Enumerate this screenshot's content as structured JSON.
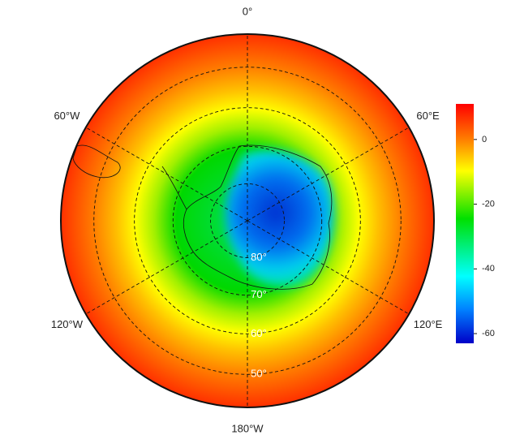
{
  "map": {
    "meridians": [
      {
        "value": 0,
        "label": "0°"
      },
      {
        "value": 60,
        "label": "60°E"
      },
      {
        "value": 120,
        "label": "120°E"
      },
      {
        "value": 180,
        "label": "180°W"
      },
      {
        "value": -120,
        "label": "120°W"
      },
      {
        "value": -60,
        "label": "60°W"
      }
    ],
    "parallels": [
      {
        "value": -80,
        "label": "80°"
      },
      {
        "value": -70,
        "label": "70°"
      },
      {
        "value": -60,
        "label": "60°"
      },
      {
        "value": -50,
        "label": "50°"
      }
    ],
    "colorbar": {
      "lim": [
        -63,
        11
      ],
      "ticks": [
        0,
        -20,
        -40,
        -60
      ]
    }
  }
}
